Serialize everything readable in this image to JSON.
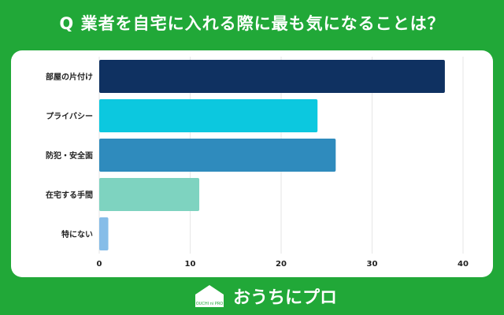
{
  "title": "Q 業者を自宅に入れる際に最も気になることは？",
  "chart_data": {
    "type": "bar",
    "orientation": "horizontal",
    "categories": [
      "部屋の片付け",
      "プライバシー",
      "防犯・安全面",
      "在宅する手間",
      "特にない"
    ],
    "values": [
      38,
      24,
      26,
      11,
      1
    ],
    "colors": [
      "#0f3161",
      "#0cc8df",
      "#2f8bbd",
      "#7ed3c0",
      "#86bde8"
    ],
    "xlim": [
      0,
      40
    ],
    "xticks": [
      0,
      10,
      20,
      30,
      40
    ],
    "grid": true
  },
  "brand": {
    "logo_text": "OUCHI ni PRO",
    "name": "おうちにプロ",
    "icon": "house-icon"
  }
}
